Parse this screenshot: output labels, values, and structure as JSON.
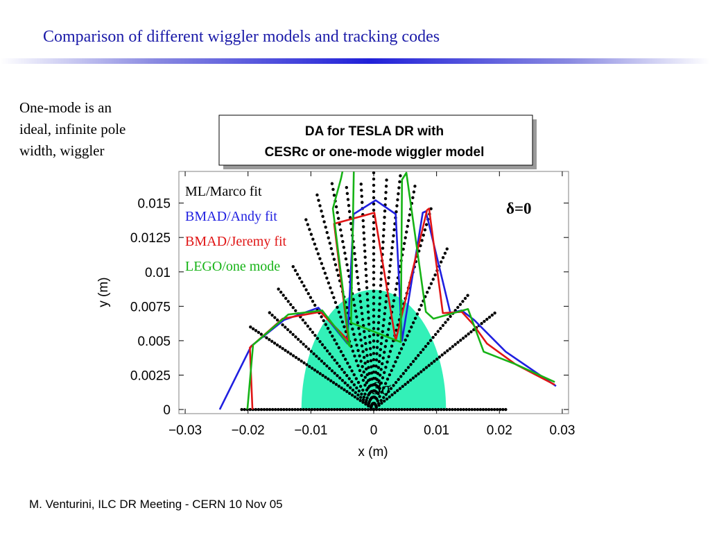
{
  "slide": {
    "title": "Comparison of different wiggler models and tracking codes",
    "side_note": [
      "One-mode is an",
      "ideal, infinite pole",
      "width, wiggler"
    ],
    "footer": "M. Venturini, ILC DR Meeting - CERN 10 Nov 05",
    "title_color": "#1a1aa8"
  },
  "chart_data": {
    "type": "line",
    "title_box": [
      "DA for TESLA DR with",
      "CESRc or one-mode wiggler model"
    ],
    "xlabel": "x (m)",
    "ylabel": "y (m)",
    "xlim": [
      -0.031,
      0.031
    ],
    "ylim": [
      -0.0003,
      0.0173
    ],
    "x_ticks": [
      -0.03,
      -0.02,
      -0.01,
      0,
      0.01,
      0.02,
      0.03
    ],
    "x_tick_labels": [
      "−0.03",
      "−0.02",
      "−0.01",
      "0",
      "0.01",
      "0.02",
      "0.03"
    ],
    "y_ticks": [
      0,
      0.0025,
      0.005,
      0.0075,
      0.01,
      0.0125,
      0.015
    ],
    "y_tick_labels": [
      "0",
      "0.0025",
      "0.005",
      "0.0075",
      "0.01",
      "0.0125",
      "0.015"
    ],
    "grid": false,
    "legend_position": "top-left",
    "annotations": {
      "delta": "δ=0",
      "beam_size": "3σ"
    },
    "beam_ellipse": {
      "semi_axis_x": 0.0115,
      "semi_axis_y": 0.0087,
      "color": "#33f0b8"
    },
    "series": [
      {
        "name": "ML/Marco fit",
        "color": "#000000",
        "style": "dots",
        "rays": [
          {
            "angle": 180,
            "r": 0.021
          },
          {
            "angle": 0,
            "r": 0.021
          },
          {
            "angle": 163,
            "r": 0.0205
          },
          {
            "angle": 157,
            "r": 0.018
          },
          {
            "angle": 150,
            "r": 0.0175
          },
          {
            "angle": 141,
            "r": 0.0165
          },
          {
            "angle": 128,
            "r": 0.0175
          },
          {
            "angle": 120,
            "r": 0.018
          },
          {
            "angle": 112,
            "r": 0.0177
          },
          {
            "angle": 105,
            "r": 0.0167
          },
          {
            "angle": 97,
            "r": 0.0165
          },
          {
            "angle": 90,
            "r": 0.0172
          },
          {
            "angle": 83,
            "r": 0.0168
          },
          {
            "angle": 76,
            "r": 0.0175
          },
          {
            "angle": 68,
            "r": 0.0175
          },
          {
            "angle": 58,
            "r": 0.0172
          },
          {
            "angle": 45,
            "r": 0.0165
          },
          {
            "angle": 29,
            "r": 0.0171
          },
          {
            "angle": 20,
            "r": 0.0205
          }
        ]
      },
      {
        "name": "BMAD/Andy fit",
        "color": "#1f1fe0",
        "style": "line",
        "x": [
          -0.0245,
          -0.0195,
          -0.0143,
          -0.0088,
          -0.0042,
          -0.0032,
          0.0003,
          0.0035,
          0.0045,
          0.0078,
          0.0083,
          0.0122,
          0.014,
          0.016,
          0.021,
          0.029
        ],
        "y": [
          0,
          0.0046,
          0.0065,
          0.0074,
          0.0048,
          0.0142,
          0.0152,
          0.0142,
          0.005,
          0.0143,
          0.0144,
          0.007,
          0.0072,
          0.0065,
          0.0042,
          0.0017
        ]
      },
      {
        "name": "BMAD/Jeremy fit",
        "color": "#e01515",
        "style": "line",
        "x": [
          -0.0193,
          -0.0197,
          -0.0145,
          -0.0085,
          -0.004,
          -0.0063,
          0.0001,
          0.0035,
          0.0085,
          0.0088,
          0.011,
          0.014,
          0.0158,
          0.018,
          0.0225,
          0.0288
        ],
        "y": [
          0,
          0.0045,
          0.0066,
          0.0071,
          0.005,
          0.0135,
          0.0143,
          0.005,
          0.0145,
          0.0146,
          0.007,
          0.0071,
          0.0062,
          0.0048,
          0.0033,
          0.0018
        ]
      },
      {
        "name": "LEGO/one mode",
        "color": "#16b316",
        "style": "line",
        "x": [
          -0.0201,
          -0.0192,
          -0.0136,
          -0.0082,
          -0.0038,
          -0.0065,
          -0.0052,
          -0.003,
          -0.0036,
          0.0043,
          0.0045,
          0.0052,
          0.0083,
          0.0095,
          0.015,
          0.0175,
          0.0225,
          0.0288
        ],
        "y": [
          0,
          0.0047,
          0.0069,
          0.0072,
          0.0046,
          0.0146,
          0.0168,
          0.0216,
          0.0063,
          0.0049,
          0.0167,
          0.0172,
          0.0071,
          0.0066,
          0.0073,
          0.0042,
          0.0033,
          0.002
        ]
      }
    ]
  }
}
